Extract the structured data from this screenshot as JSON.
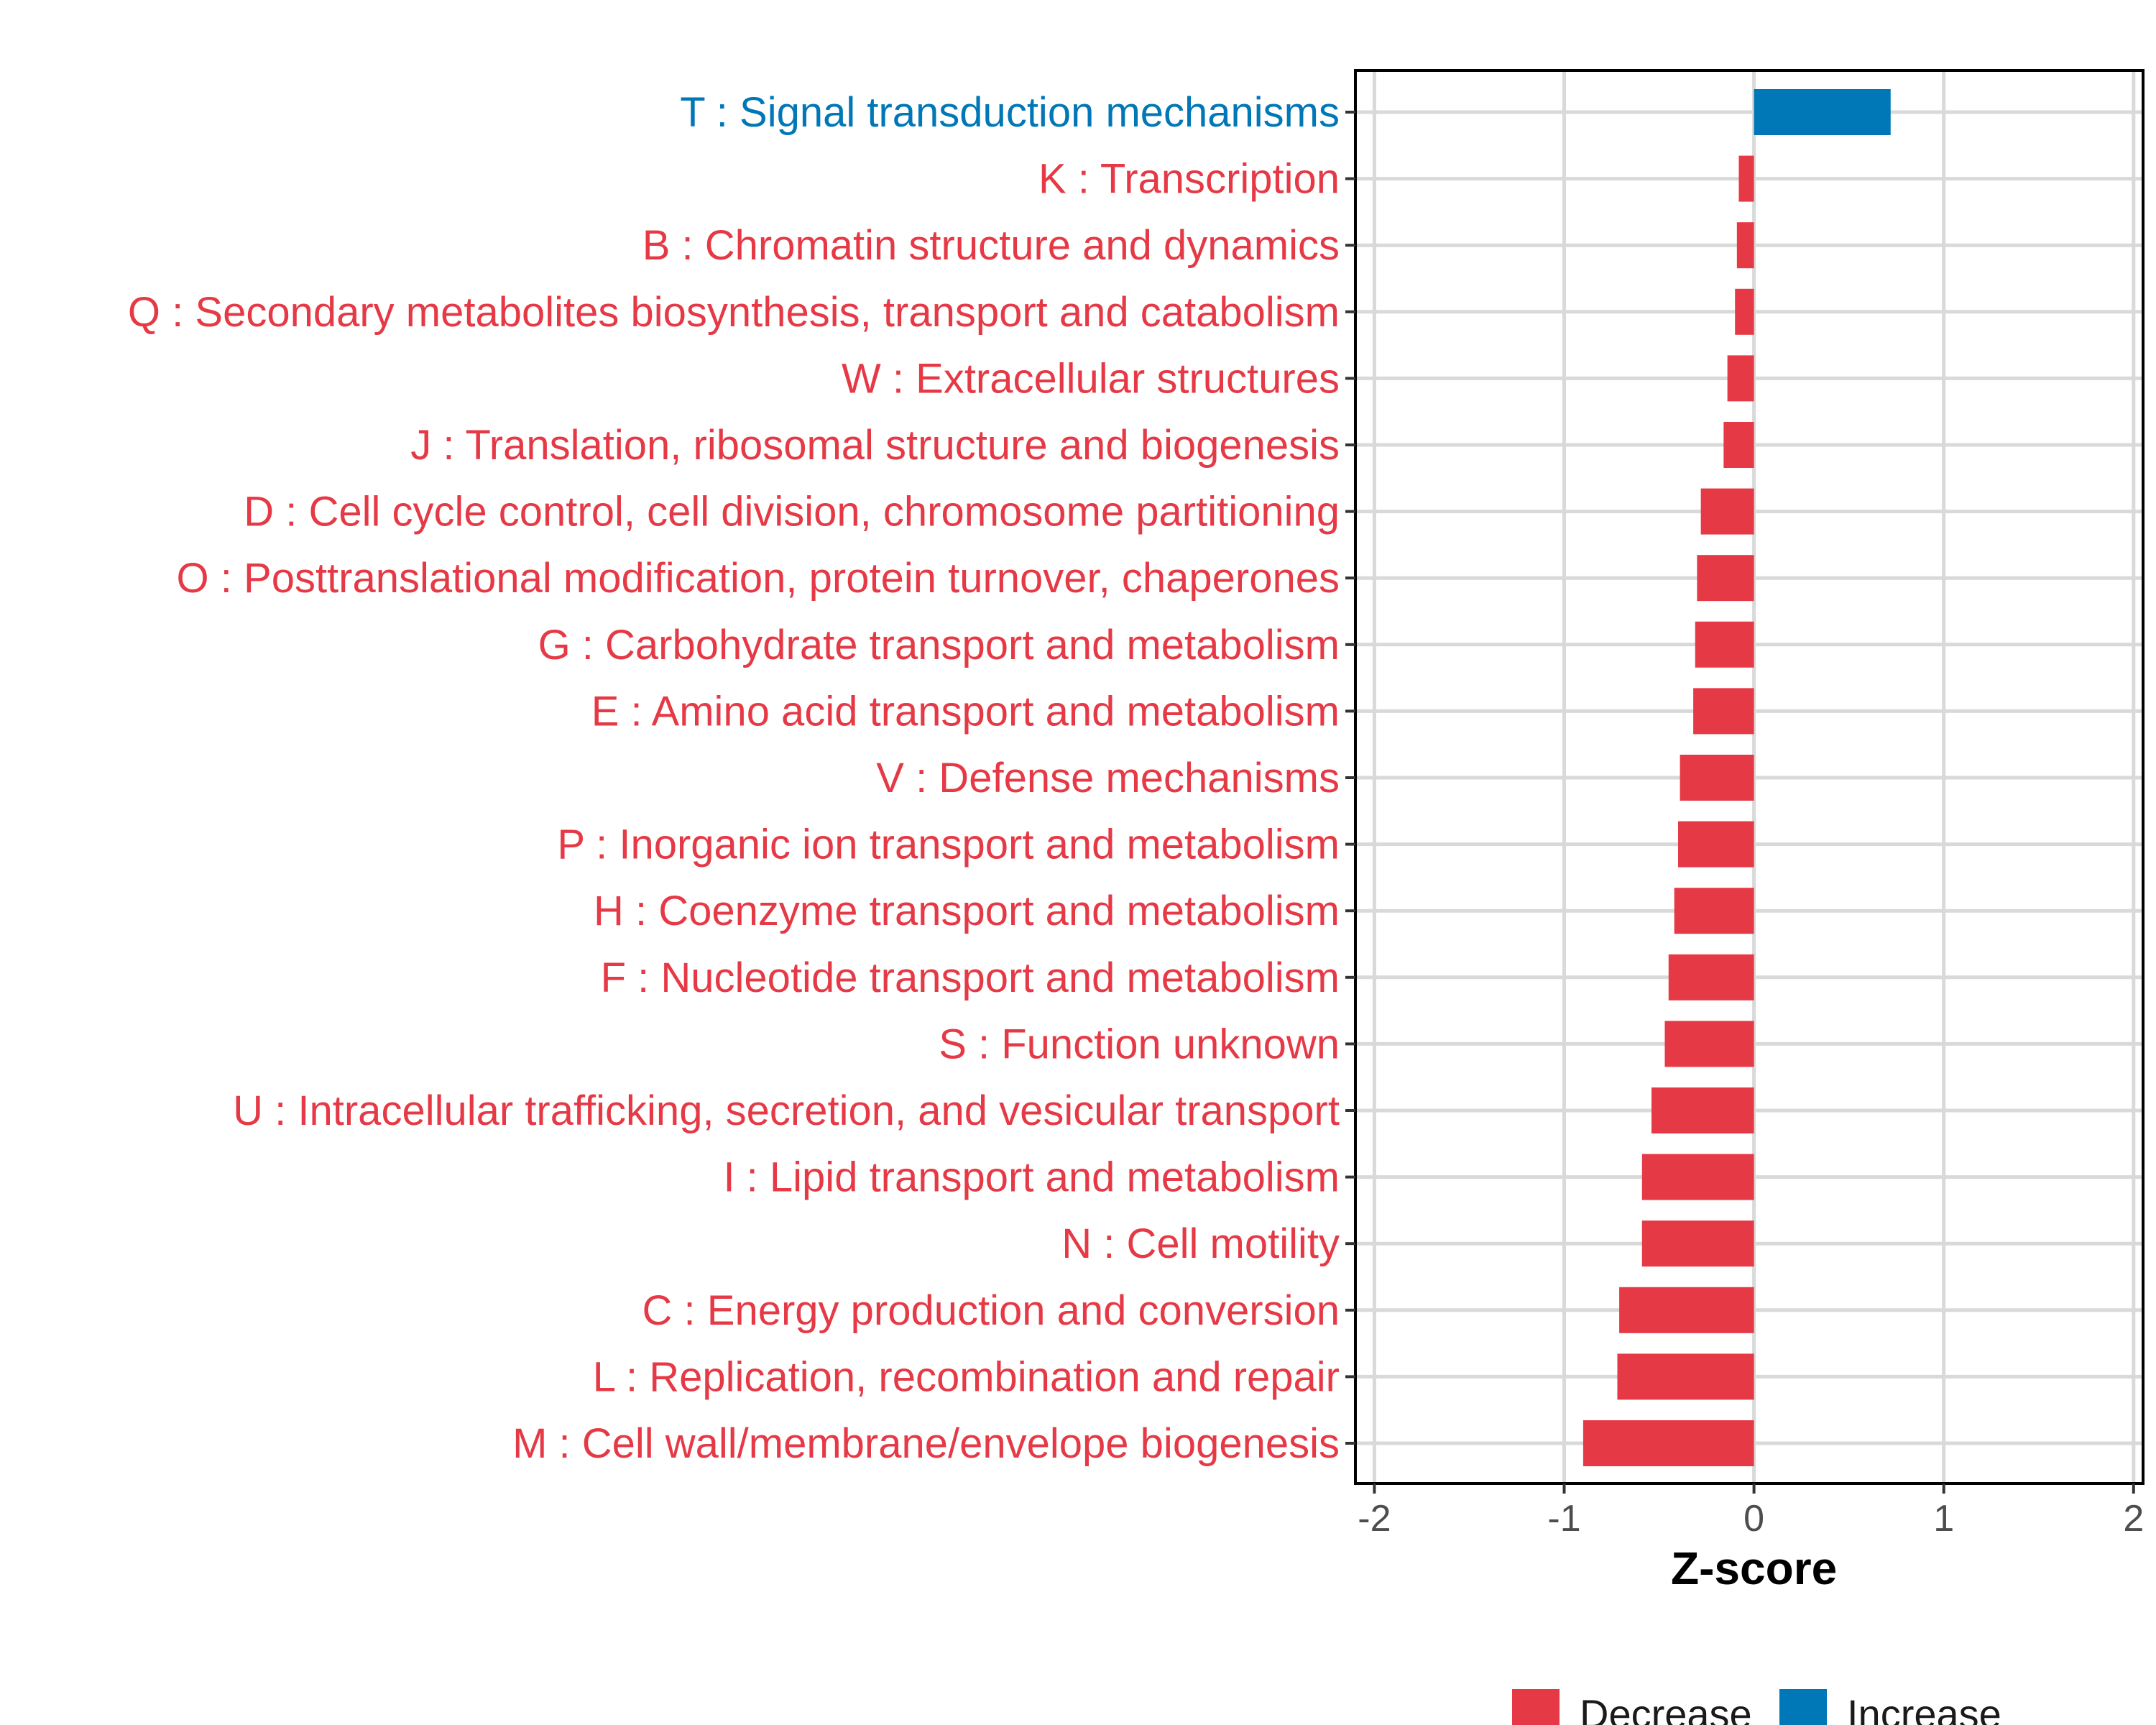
{
  "colors": {
    "decrease": "#e63946",
    "increase": "#0077b6",
    "grid": "#d9d9d9",
    "axis": "#000000"
  },
  "chart_data": {
    "type": "bar",
    "orientation": "horizontal",
    "xlabel": "Z-score",
    "xlim": [
      -2.1,
      2.05
    ],
    "xticks": [
      -2,
      -1,
      0,
      1,
      2
    ],
    "xtick_labels": [
      "-2",
      "-1",
      "0",
      "1",
      "2"
    ],
    "grid": true,
    "legend": {
      "position": "bottom",
      "entries": [
        {
          "label": "Decrease",
          "color_key": "decrease"
        },
        {
          "label": "Increase",
          "color_key": "increase"
        }
      ]
    },
    "categories": [
      "T : Signal transduction mechanisms",
      "K : Transcription",
      "B : Chromatin structure and dynamics",
      "Q : Secondary metabolites biosynthesis, transport and catabolism",
      "W : Extracellular structures",
      "J : Translation, ribosomal structure and biogenesis",
      "D : Cell cycle control, cell division, chromosome partitioning",
      "O : Posttranslational modification, protein turnover, chaperones",
      "G : Carbohydrate transport and metabolism",
      "E : Amino acid transport and metabolism",
      "V : Defense mechanisms",
      "P : Inorganic ion transport and metabolism",
      "H : Coenzyme transport and metabolism",
      "F : Nucleotide transport and metabolism",
      "S : Function unknown",
      "U : Intracellular trafficking, secretion, and vesicular transport",
      "I : Lipid transport and metabolism",
      "N : Cell motility",
      "C : Energy production and conversion",
      "L : Replication, recombination and repair",
      "M : Cell wall/membrane/envelope biogenesis"
    ],
    "values": [
      0.72,
      -0.08,
      -0.09,
      -0.1,
      -0.14,
      -0.16,
      -0.28,
      -0.3,
      -0.31,
      -0.32,
      -0.39,
      -0.4,
      -0.42,
      -0.45,
      -0.47,
      -0.54,
      -0.59,
      -0.59,
      -0.71,
      -0.72,
      -0.9
    ],
    "direction": [
      "Increase",
      "Decrease",
      "Decrease",
      "Decrease",
      "Decrease",
      "Decrease",
      "Decrease",
      "Decrease",
      "Decrease",
      "Decrease",
      "Decrease",
      "Decrease",
      "Decrease",
      "Decrease",
      "Decrease",
      "Decrease",
      "Decrease",
      "Decrease",
      "Decrease",
      "Decrease",
      "Decrease"
    ]
  }
}
